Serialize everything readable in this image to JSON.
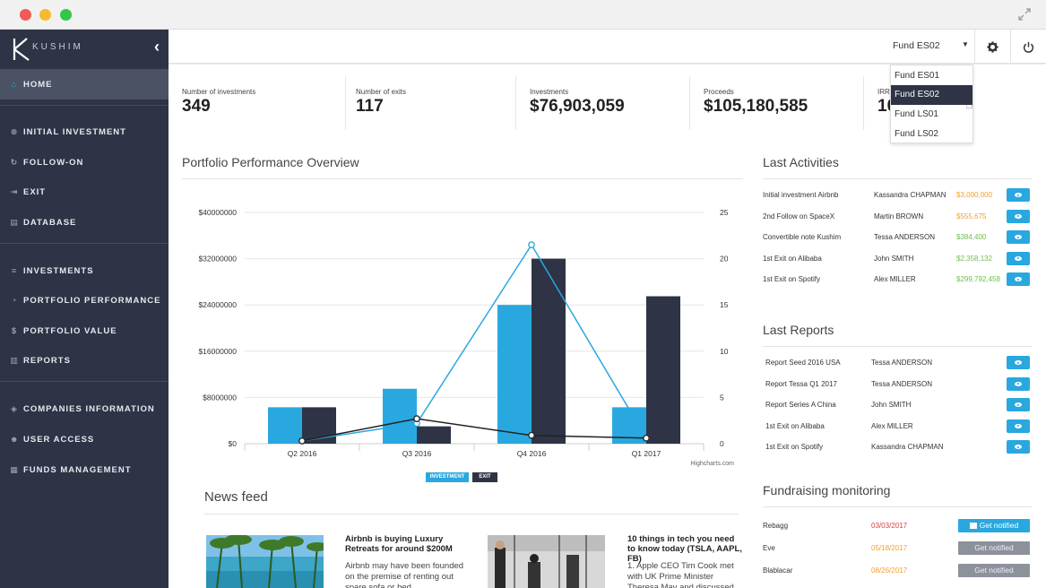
{
  "brand": {
    "name": "KUSHIM"
  },
  "sidebar": {
    "items": [
      {
        "label": "HOME",
        "icon": "home-icon"
      },
      {
        "label": "INITIAL INVESTMENT",
        "icon": "plus-circle-icon"
      },
      {
        "label": "FOLLOW-ON",
        "icon": "refresh-icon"
      },
      {
        "label": "EXIT",
        "icon": "exit-icon"
      },
      {
        "label": "DATABASE",
        "icon": "database-icon"
      },
      {
        "label": "INVESTMENTS",
        "icon": "list-icon"
      },
      {
        "label": "PORTFOLIO PERFORMANCE",
        "icon": "pie-icon"
      },
      {
        "label": "PORTFOLIO VALUE",
        "icon": "dollar-icon"
      },
      {
        "label": "REPORTS",
        "icon": "bar-chart-icon"
      },
      {
        "label": "COMPANIES INFORMATION",
        "icon": "tag-icon"
      },
      {
        "label": "USER ACCESS",
        "icon": "users-icon"
      },
      {
        "label": "FUNDS MANAGEMENT",
        "icon": "bank-icon"
      }
    ]
  },
  "topbar": {
    "fund_selected": "Fund ES02",
    "fund_options": [
      "Fund ES01",
      "Fund ES02",
      "Fund LS01",
      "Fund LS02"
    ]
  },
  "stats": [
    {
      "label": "Number of investments",
      "value": "349"
    },
    {
      "label": "Number of exits",
      "value": "117"
    },
    {
      "label": "Investments",
      "value": "$76,903,059"
    },
    {
      "label": "Proceeds",
      "value": "$105,180,585"
    },
    {
      "label": "IRR",
      "value": "10"
    }
  ],
  "sections": {
    "portfolio": "Portfolio Performance Overview",
    "activities": "Last Activities",
    "reports": "Last Reports",
    "fundraising": "Fundraising monitoring",
    "news": "News feed"
  },
  "chart_data": {
    "type": "bar",
    "categories": [
      "Q2 2016",
      "Q3 2016",
      "Q4 2016",
      "Q1 2017"
    ],
    "series": [
      {
        "name": "INVESTMENT",
        "type": "bar",
        "values": [
          6300000,
          9500000,
          24000000,
          6300000
        ],
        "color": "#29a8e0"
      },
      {
        "name": "EXIT",
        "type": "bar",
        "values": [
          6300000,
          3000000,
          32000000,
          25500000
        ],
        "color": "#2e3445"
      },
      {
        "type": "line",
        "axis": "right",
        "values": [
          0.3,
          2.2,
          21.5,
          0.6
        ],
        "color": "#29a8e0"
      },
      {
        "type": "line",
        "axis": "right",
        "values": [
          0.3,
          2.7,
          0.9,
          0.6
        ],
        "color": "#222222"
      }
    ],
    "y_left": {
      "ticks": [
        "$0",
        "$8000000",
        "$16000000",
        "$24000000",
        "$32000000",
        "$40000000"
      ],
      "range": [
        0,
        40000000
      ]
    },
    "y_right": {
      "ticks": [
        "0",
        "5",
        "10",
        "15",
        "20",
        "25"
      ],
      "range": [
        0,
        25
      ]
    },
    "credit": "Highcharts.com",
    "grid": true,
    "legend": "bottom-center"
  },
  "activities": [
    {
      "desc": "Initial investment Airbnb",
      "person": "Kassandra CHAPMAN",
      "amount": "$3,000,000",
      "color": "#f0a030"
    },
    {
      "desc": "2nd Follow on SpaceX",
      "person": "Martin BROWN",
      "amount": "$555,675",
      "color": "#f0a030"
    },
    {
      "desc": "Convertible note Kushim",
      "person": "Tessa ANDERSON",
      "amount": "$384,400",
      "color": "#6cc24a"
    },
    {
      "desc": "1st Exit on Alibaba",
      "person": "John SMITH",
      "amount": "$2,358,132",
      "color": "#6cc24a"
    },
    {
      "desc": "1st Exit on Spotify",
      "person": "Alex MILLER",
      "amount": "$299,792,458",
      "color": "#6cc24a"
    }
  ],
  "reports": [
    {
      "desc": "Report Seed 2016 USA",
      "person": "Tessa ANDERSON"
    },
    {
      "desc": "Report Tessa Q1 2017",
      "person": "Tessa ANDERSON"
    },
    {
      "desc": "Report Series A China",
      "person": "John SMITH"
    },
    {
      "desc": "1st Exit on Alibaba",
      "person": "Alex MILLER"
    },
    {
      "desc": "1st Exit on Spotify",
      "person": "Kassandra CHAPMAN"
    }
  ],
  "fundraising": [
    {
      "name": "Rebagg",
      "date": "03/03/2017",
      "date_color": "#e0403a",
      "button": "Get notified",
      "active": true
    },
    {
      "name": "Eve",
      "date": "05/18/2017",
      "date_color": "#f0a030",
      "button": "Get notified",
      "active": false
    },
    {
      "name": "Blablacar",
      "date": "08/26/2017",
      "date_color": "#f0a030",
      "button": "Get notified",
      "active": false
    }
  ],
  "news": [
    {
      "title": "Airbnb is buying Luxury Retreats for around $200M",
      "body": "Airbnb may have been founded on the premise of renting out spare sofa or bed"
    },
    {
      "title": "10 things in tech you need to know today (TSLA, AAPL, FB)",
      "body": "1. Apple CEO Tim Cook met with UK Prime Minister Theresa May and discussed"
    }
  ]
}
